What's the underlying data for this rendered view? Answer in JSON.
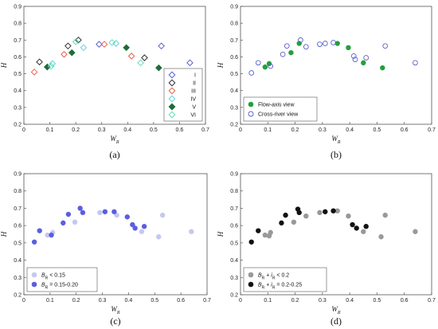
{
  "chart_data": [
    {
      "panel_label": "(a)",
      "type": "scatter",
      "xlabel": "W",
      "xlabel_sub": "R",
      "ylabel": "H",
      "xlim": [
        0,
        0.7
      ],
      "ylim": [
        0.2,
        0.9
      ],
      "xticks": [
        "0",
        "0.1",
        "0.2",
        "0.3",
        "0.4",
        "0.5",
        "0.6",
        "0.7"
      ],
      "yticks": [
        "0.2",
        "0.3",
        "0.4",
        "0.5",
        "0.6",
        "0.7",
        "0.8",
        "0.9"
      ],
      "legend_position": "bottom-right",
      "series": [
        {
          "name": "I",
          "marker": "diamond-open",
          "color": "#5560c8",
          "x": [
            0.29,
            0.53,
            0.64
          ],
          "y": [
            0.675,
            0.665,
            0.565
          ]
        },
        {
          "name": "II",
          "marker": "diamond-open",
          "color": "#333333",
          "x": [
            0.06,
            0.17,
            0.21,
            0.465
          ],
          "y": [
            0.57,
            0.665,
            0.7,
            0.595
          ]
        },
        {
          "name": "III",
          "marker": "diamond-open",
          "color": "#e8604c",
          "x": [
            0.04,
            0.155,
            0.31,
            0.415
          ],
          "y": [
            0.51,
            0.615,
            0.675,
            0.605
          ]
        },
        {
          "name": "IV",
          "marker": "diamond-open",
          "color": "#5fd4e0",
          "x": [
            0.11,
            0.23,
            0.355
          ],
          "y": [
            0.56,
            0.655,
            0.68
          ]
        },
        {
          "name": "V",
          "marker": "diamond-filled",
          "color": "#1f6b3a",
          "x": [
            0.09,
            0.185,
            0.395,
            0.52
          ],
          "y": [
            0.54,
            0.625,
            0.655,
            0.535
          ]
        },
        {
          "name": "VI",
          "marker": "diamond-open",
          "color": "#5fe0b8",
          "x": [
            0.105,
            0.2,
            0.34,
            0.45
          ],
          "y": [
            0.545,
            0.69,
            0.685,
            0.565
          ]
        }
      ]
    },
    {
      "panel_label": "(b)",
      "type": "scatter",
      "xlabel": "W",
      "xlabel_sub": "R",
      "ylabel": "H",
      "xlim": [
        0,
        0.7
      ],
      "ylim": [
        0.2,
        0.9
      ],
      "xticks": [
        "0",
        "0.1",
        "0.2",
        "0.3",
        "0.4",
        "0.5",
        "0.6",
        "0.7"
      ],
      "yticks": [
        "0.2",
        "0.3",
        "0.4",
        "0.5",
        "0.6",
        "0.7",
        "0.8",
        "0.9"
      ],
      "legend_position": "bottom-left",
      "series": [
        {
          "name": "Flow-axis view",
          "marker": "circle-filled",
          "color": "#22a03a",
          "x": [
            0.09,
            0.105,
            0.185,
            0.215,
            0.355,
            0.395,
            0.45,
            0.52
          ],
          "y": [
            0.54,
            0.56,
            0.625,
            0.68,
            0.68,
            0.655,
            0.565,
            0.535
          ]
        },
        {
          "name": "Cross-river view",
          "marker": "circle-open",
          "color": "#5560c8",
          "x": [
            0.04,
            0.065,
            0.11,
            0.155,
            0.17,
            0.22,
            0.24,
            0.29,
            0.31,
            0.34,
            0.415,
            0.42,
            0.46,
            0.53,
            0.64
          ],
          "y": [
            0.505,
            0.565,
            0.545,
            0.615,
            0.665,
            0.7,
            0.66,
            0.675,
            0.68,
            0.685,
            0.605,
            0.585,
            0.595,
            0.665,
            0.565
          ]
        }
      ]
    },
    {
      "panel_label": "(c)",
      "type": "scatter",
      "xlabel": "W",
      "xlabel_sub": "R",
      "ylabel": "H",
      "xlim": [
        0,
        0.7
      ],
      "ylim": [
        0.2,
        0.9
      ],
      "xticks": [
        "0",
        "0.1",
        "0.2",
        "0.3",
        "0.4",
        "0.5",
        "0.6",
        "0.7"
      ],
      "yticks": [
        "0.2",
        "0.3",
        "0.4",
        "0.5",
        "0.6",
        "0.7",
        "0.8",
        "0.9"
      ],
      "legend_position": "bottom-left",
      "series": [
        {
          "name": "B_R < 0.15",
          "legend_var": "B",
          "legend_sub": "R",
          "legend_rest": " < 0.15",
          "marker": "circle-filled",
          "color": "#c5c8ee",
          "x": [
            0.09,
            0.11,
            0.195,
            0.29,
            0.31,
            0.355,
            0.45,
            0.515,
            0.53,
            0.64
          ],
          "y": [
            0.545,
            0.56,
            0.62,
            0.675,
            0.68,
            0.66,
            0.565,
            0.535,
            0.66,
            0.565
          ]
        },
        {
          "name": "B_R = 0.15-0.20",
          "legend_var": "B",
          "legend_sub": "R",
          "legend_rest": " = 0.15-0.20",
          "marker": "circle-filled",
          "color": "#5a5ee0",
          "x": [
            0.04,
            0.06,
            0.105,
            0.15,
            0.17,
            0.215,
            0.225,
            0.31,
            0.345,
            0.395,
            0.415,
            0.425,
            0.46
          ],
          "y": [
            0.505,
            0.57,
            0.545,
            0.615,
            0.665,
            0.7,
            0.675,
            0.68,
            0.68,
            0.65,
            0.605,
            0.585,
            0.595
          ]
        }
      ]
    },
    {
      "panel_label": "(d)",
      "type": "scatter",
      "xlabel": "W",
      "xlabel_sub": "R",
      "ylabel": "H",
      "xlim": [
        0,
        0.7
      ],
      "ylim": [
        0.2,
        0.9
      ],
      "xticks": [
        "0",
        "0.1",
        "0.2",
        "0.3",
        "0.4",
        "0.5",
        "0.6",
        "0.7"
      ],
      "yticks": [
        "0.2",
        "0.3",
        "0.4",
        "0.5",
        "0.6",
        "0.7",
        "0.8",
        "0.9"
      ],
      "legend_position": "bottom-left",
      "series": [
        {
          "name": "B_R + i_R < 0.2",
          "legend_var": "B",
          "legend_sub": "R",
          "legend_mid": " + ",
          "legend_var2": "i",
          "legend_sub2": "R",
          "legend_rest": " < 0.2",
          "marker": "circle-filled",
          "color": "#999999",
          "x": [
            0.09,
            0.105,
            0.11,
            0.195,
            0.24,
            0.29,
            0.355,
            0.395,
            0.45,
            0.515,
            0.53,
            0.64
          ],
          "y": [
            0.545,
            0.54,
            0.56,
            0.62,
            0.655,
            0.675,
            0.685,
            0.655,
            0.565,
            0.535,
            0.66,
            0.565
          ]
        },
        {
          "name": "B_R + i_R = 0.2-0.25",
          "legend_var": "B",
          "legend_sub": "R",
          "legend_mid": " + ",
          "legend_var2": "i",
          "legend_sub2": "R",
          "legend_rest": " = 0.2-0.25",
          "marker": "circle-filled",
          "color": "#111111",
          "x": [
            0.04,
            0.065,
            0.15,
            0.165,
            0.21,
            0.215,
            0.31,
            0.34,
            0.41,
            0.425,
            0.46
          ],
          "y": [
            0.505,
            0.57,
            0.615,
            0.66,
            0.695,
            0.675,
            0.68,
            0.685,
            0.605,
            0.585,
            0.595
          ]
        }
      ]
    }
  ]
}
